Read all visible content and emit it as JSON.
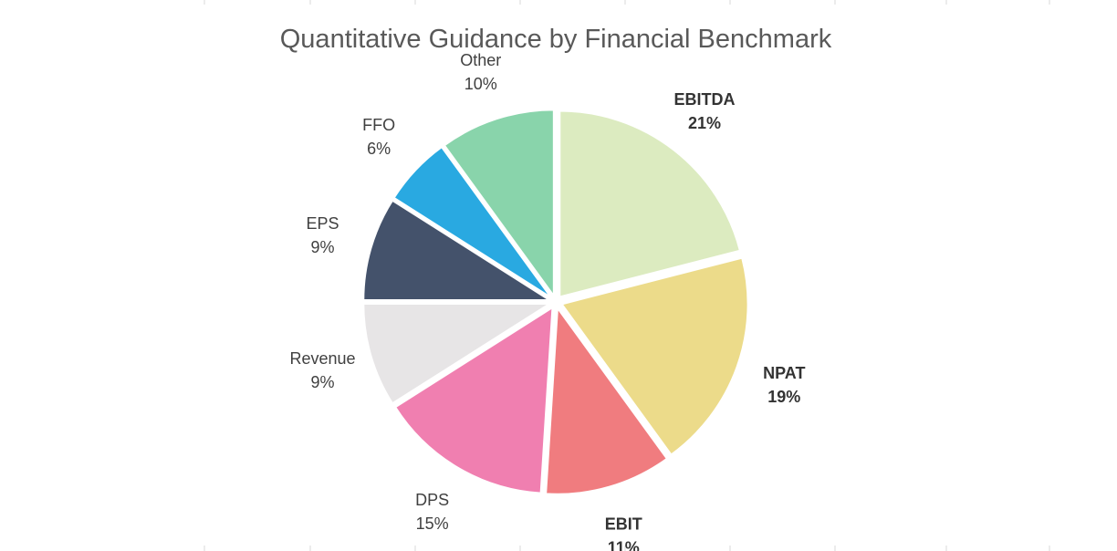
{
  "chart_data": {
    "type": "pie",
    "title": "Quantitative Guidance by Financial Benchmark",
    "start_angle_deg": 0,
    "direction": "clockwise",
    "exploded": true,
    "slices": [
      {
        "label": "EBITDA",
        "value": 21,
        "display": "21%",
        "color": "#dcebc0",
        "bold": true
      },
      {
        "label": "NPAT",
        "value": 19,
        "display": "19%",
        "color": "#ecdb8a",
        "bold": true
      },
      {
        "label": "EBIT",
        "value": 11,
        "display": "11%",
        "color": "#f07c7f",
        "bold": true
      },
      {
        "label": "DPS",
        "value": 15,
        "display": "15%",
        "color": "#f07fb0",
        "bold": false
      },
      {
        "label": "Revenue",
        "value": 9,
        "display": "9%",
        "color": "#e7e5e6",
        "bold": false
      },
      {
        "label": "EPS",
        "value": 9,
        "display": "9%",
        "color": "#44526b",
        "bold": false
      },
      {
        "label": "FFO",
        "value": 6,
        "display": "6%",
        "color": "#29a9e1",
        "bold": false
      },
      {
        "label": "Other",
        "value": 10,
        "display": "10%",
        "color": "#89d4ab",
        "bold": false
      }
    ]
  }
}
